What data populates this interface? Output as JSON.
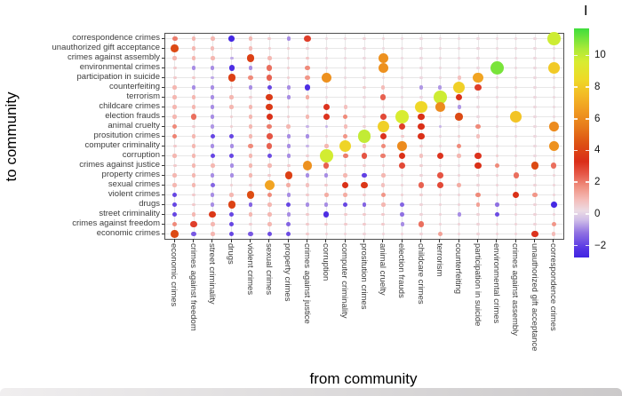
{
  "figure": {
    "xlabel": "from community",
    "ylabel": "to community",
    "legend_title": "I"
  },
  "chart_data": {
    "type": "heatmap",
    "subtype": "bubble-matrix (dot color and size encode value I)",
    "title": "",
    "xlabel": "from community",
    "ylabel": "to community",
    "grid": true,
    "legend_position": "right-colorbar",
    "value_label": "I",
    "value_range": [
      -2.75,
      11.7
    ],
    "legend_ticks": [
      10,
      8,
      6,
      4,
      2,
      0,
      -2
    ],
    "color_stops": [
      {
        "v": -3.3,
        "color": "#2a15e0"
      },
      {
        "v": -2.2,
        "color": "#5534e4"
      },
      {
        "v": -1.2,
        "color": "#8f70e2"
      },
      {
        "v": -0.4,
        "color": "#cfbde8"
      },
      {
        "v": 0.2,
        "color": "#ecdbe4"
      },
      {
        "v": 0.9,
        "color": "#f4bcb8"
      },
      {
        "v": 1.7,
        "color": "#f09181"
      },
      {
        "v": 2.5,
        "color": "#e65a49"
      },
      {
        "v": 3.3,
        "color": "#da2d18"
      },
      {
        "v": 4.4,
        "color": "#dd5013"
      },
      {
        "v": 5.5,
        "color": "#e77b1b"
      },
      {
        "v": 6.5,
        "color": "#f09a21"
      },
      {
        "v": 7.5,
        "color": "#f3ba25"
      },
      {
        "v": 8.5,
        "color": "#eeda28"
      },
      {
        "v": 9.6,
        "color": "#d8ec31"
      },
      {
        "v": 10.4,
        "color": "#abea38"
      },
      {
        "v": 11.7,
        "color": "#3edd3c"
      }
    ],
    "x_categories": [
      "economic crimes",
      "crimes against freedom",
      "street criminality",
      "drugs",
      "violent crimes",
      "sexual crimes",
      "property crimes",
      "crimes against justice",
      "corruption",
      "computer criminality",
      "prositution crimes",
      "animal cruelty",
      "election frauds",
      "childcare crimes",
      "terrorism",
      "counterfeiting",
      "participation in suicide",
      "environmental crimes",
      "crimes against assembly",
      "unauthorized gift acceptance",
      "correspondence crimes"
    ],
    "y_categories": [
      "correspondence crimes",
      "unauthorized gift acceptance",
      "crimes against assembly",
      "environmental crimes",
      "participation in suicide",
      "counterfeiting",
      "terrorism",
      "childcare crimes",
      "election frauds",
      "animal cruelty",
      "prositution crimes",
      "computer criminality",
      "corruption",
      "crimes against justice",
      "property crimes",
      "sexual crimes",
      "violent crimes",
      "drugs",
      "street criminality",
      "crimes against freedom",
      "economic crimes"
    ],
    "values": [
      [
        2.0,
        1.0,
        1.0,
        -2.6,
        1.0,
        0.6,
        -0.9,
        3.0,
        0.3,
        0.3,
        0.4,
        0.4,
        0.3,
        0.3,
        0.3,
        0.3,
        0.3,
        0.3,
        0.3,
        0.3,
        9.8
      ],
      [
        4.2,
        1.0,
        0.9,
        0.5,
        0.9,
        0.5,
        0.5,
        0.4,
        0.3,
        0.3,
        0.3,
        0.3,
        0.3,
        0.3,
        0.3,
        0.3,
        0.3,
        0.3,
        0.3,
        0.3,
        0.3
      ],
      [
        1.0,
        1.0,
        1.0,
        -0.6,
        3.9,
        1.0,
        0.5,
        0.7,
        0.3,
        0.3,
        0.3,
        6.2,
        0.3,
        0.3,
        0.3,
        0.3,
        0.3,
        0.3,
        0.3,
        0.3,
        0.3
      ],
      [
        0.6,
        -0.9,
        -0.9,
        -2.4,
        -0.9,
        2.2,
        0.5,
        1.8,
        0.3,
        0.3,
        0.3,
        6.2,
        0.3,
        0.3,
        0.3,
        0.3,
        0.3,
        11.0,
        0.3,
        0.3,
        8.0
      ],
      [
        0.6,
        0.6,
        -0.6,
        3.9,
        1.8,
        2.4,
        0.5,
        1.6,
        6.2,
        0.3,
        0.3,
        0.3,
        0.3,
        0.3,
        0.3,
        0.8,
        6.8,
        0.3,
        0.3,
        0.3,
        0.3
      ],
      [
        1.0,
        -0.9,
        -0.9,
        0.5,
        -0.9,
        -1.9,
        -0.9,
        -2.4,
        0.3,
        0.3,
        0.5,
        0.9,
        0.3,
        -0.8,
        -0.8,
        8.2,
        3.0,
        0.3,
        0.3,
        0.3,
        0.3
      ],
      [
        1.0,
        1.0,
        -0.9,
        1.0,
        0.5,
        3.7,
        -0.9,
        1.2,
        0.3,
        0.3,
        0.3,
        2.4,
        0.3,
        0.3,
        9.8,
        3.4,
        0.3,
        0.3,
        0.3,
        0.3,
        0.3
      ],
      [
        1.0,
        1.0,
        -0.9,
        1.0,
        1.0,
        3.7,
        0.5,
        0.3,
        3.2,
        0.8,
        0.3,
        0.3,
        0.3,
        8.4,
        6.0,
        -0.8,
        0.3,
        0.3,
        0.3,
        0.3,
        0.3
      ],
      [
        1.0,
        2.2,
        -0.9,
        0.5,
        1.0,
        3.4,
        0.5,
        1.0,
        3.2,
        1.8,
        0.3,
        2.8,
        9.6,
        3.4,
        0.3,
        4.2,
        0.3,
        0.3,
        7.8,
        0.3,
        0.3
      ],
      [
        1.8,
        0.5,
        -0.8,
        0.5,
        1.0,
        2.0,
        1.0,
        -0.5,
        -0.5,
        0.9,
        0.4,
        8.2,
        3.0,
        3.4,
        -0.5,
        0.3,
        1.8,
        0.3,
        0.3,
        0.3,
        6.0
      ],
      [
        1.9,
        1.0,
        -1.9,
        -1.9,
        1.0,
        2.6,
        -0.9,
        -0.9,
        0.4,
        1.6,
        10.0,
        3.2,
        0.6,
        3.4,
        0.3,
        0.5,
        0.8,
        0.3,
        0.3,
        0.3,
        0.3
      ],
      [
        0.6,
        1.0,
        -0.9,
        -0.9,
        1.8,
        2.4,
        -0.9,
        -0.5,
        1.0,
        8.3,
        0.8,
        1.8,
        6.0,
        0.5,
        0.3,
        1.8,
        0.3,
        0.3,
        0.3,
        0.3,
        6.2
      ],
      [
        1.0,
        1.0,
        -1.9,
        -1.9,
        1.0,
        -1.8,
        -0.9,
        0.5,
        9.7,
        2.0,
        2.6,
        2.0,
        3.4,
        0.8,
        3.2,
        1.0,
        3.2,
        0.5,
        0.3,
        0.3,
        0.3
      ],
      [
        0.6,
        1.0,
        1.0,
        -0.9,
        1.0,
        1.0,
        0.6,
        6.2,
        2.4,
        0.5,
        0.5,
        0.5,
        2.8,
        0.5,
        0.3,
        0.3,
        3.4,
        1.8,
        0.3,
        4.2,
        2.2
      ],
      [
        1.0,
        1.0,
        -0.9,
        -0.9,
        1.0,
        0.6,
        3.9,
        -0.9,
        -0.9,
        1.0,
        -2.0,
        1.0,
        0.4,
        0.4,
        2.6,
        0.4,
        0.4,
        0.4,
        2.2,
        0.4,
        0.4
      ],
      [
        1.0,
        1.0,
        -1.4,
        0.5,
        0.5,
        6.8,
        1.2,
        0.8,
        0.6,
        3.4,
        3.6,
        0.8,
        0.4,
        2.4,
        2.8,
        1.2,
        0.4,
        0.4,
        0.4,
        0.4,
        0.4
      ],
      [
        -1.9,
        0.6,
        -0.9,
        1.0,
        4.3,
        1.8,
        -0.9,
        0.6,
        1.2,
        1.2,
        0.5,
        1.6,
        0.5,
        0.5,
        0.4,
        0.4,
        1.8,
        0.4,
        3.4,
        1.6,
        0.4
      ],
      [
        -1.9,
        0.6,
        -0.9,
        4.0,
        -1.4,
        1.0,
        -1.9,
        -0.9,
        -0.9,
        -1.9,
        -1.4,
        1.0,
        -1.4,
        0.4,
        0.4,
        0.4,
        1.4,
        -1.2,
        0.4,
        0.4,
        -2.6
      ],
      [
        -1.9,
        1.0,
        3.6,
        -1.9,
        1.0,
        1.0,
        -0.9,
        0.6,
        -2.4,
        0.6,
        0.6,
        0.6,
        -1.2,
        0.4,
        0.4,
        -0.9,
        0.4,
        -1.8,
        0.4,
        0.4,
        0.4
      ],
      [
        1.8,
        3.0,
        1.0,
        -1.9,
        0.5,
        1.0,
        -1.4,
        0.6,
        0.6,
        0.6,
        0.6,
        0.6,
        -0.9,
        2.2,
        0.4,
        0.4,
        0.4,
        0.4,
        0.4,
        0.4,
        1.6
      ],
      [
        4.2,
        -1.6,
        1.0,
        -1.9,
        -1.6,
        -1.8,
        -1.8,
        0.6,
        0.4,
        0.4,
        0.4,
        0.4,
        0.4,
        0.4,
        1.4,
        0.4,
        0.4,
        0.4,
        0.4,
        3.2,
        0.9
      ]
    ]
  }
}
